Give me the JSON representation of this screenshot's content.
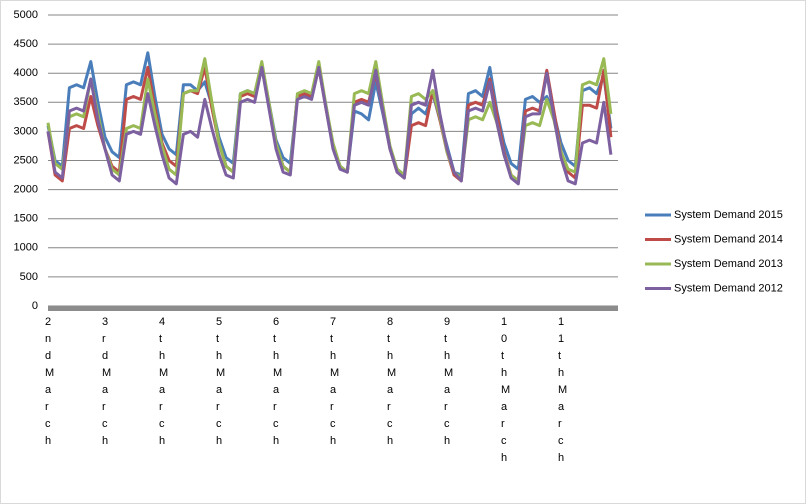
{
  "chart_data": {
    "type": "line",
    "categories": [
      "2nd March",
      null,
      null,
      null,
      null,
      null,
      null,
      null,
      "3rd March",
      null,
      null,
      null,
      null,
      null,
      null,
      null,
      "4th March",
      null,
      null,
      null,
      null,
      null,
      null,
      null,
      "5th March",
      null,
      null,
      null,
      null,
      null,
      null,
      null,
      "6th March",
      null,
      null,
      null,
      null,
      null,
      null,
      null,
      "7th March",
      null,
      null,
      null,
      null,
      null,
      null,
      null,
      "8th March",
      null,
      null,
      null,
      null,
      null,
      null,
      null,
      "9th March",
      null,
      null,
      null,
      null,
      null,
      null,
      null,
      "10th March",
      null,
      null,
      null,
      null,
      null,
      null,
      null,
      "11th March",
      null,
      null,
      null,
      null,
      null,
      null,
      null
    ],
    "series": [
      {
        "name": "System Demand 2015",
        "color": "#4a7ebb",
        "values": [
          3100,
          2500,
          2400,
          3750,
          3800,
          3750,
          4200,
          3500,
          2900,
          2650,
          2550,
          3800,
          3850,
          3800,
          4350,
          3600,
          2950,
          2700,
          2600,
          3800,
          3800,
          3700,
          3850,
          3450,
          2900,
          2550,
          2450,
          3650,
          3700,
          3650,
          4150,
          3500,
          2850,
          2550,
          2450,
          3600,
          3650,
          3600,
          4100,
          3450,
          2750,
          2400,
          2300,
          3350,
          3300,
          3200,
          3850,
          3300,
          2700,
          2350,
          2250,
          3300,
          3400,
          3300,
          3650,
          3200,
          2750,
          2300,
          2250,
          3650,
          3700,
          3600,
          4100,
          3350,
          2800,
          2450,
          2350,
          3550,
          3600,
          3500,
          3600,
          3300,
          2800,
          2500,
          2400,
          3700,
          3750,
          3650,
          3950,
          3050
        ]
      },
      {
        "name": "System Demand 2014",
        "color": "#be4b48",
        "values": [
          3000,
          2250,
          2150,
          3050,
          3100,
          3050,
          3600,
          3100,
          2700,
          2400,
          2300,
          3550,
          3600,
          3550,
          4100,
          3400,
          2800,
          2500,
          2400,
          3650,
          3700,
          3650,
          4100,
          3400,
          2800,
          2400,
          2300,
          3600,
          3650,
          3600,
          4100,
          3450,
          2800,
          2400,
          2300,
          3600,
          3650,
          3600,
          4100,
          3400,
          2750,
          2400,
          2300,
          3500,
          3550,
          3500,
          4000,
          3350,
          2700,
          2300,
          2200,
          3100,
          3150,
          3100,
          3700,
          3200,
          2650,
          2250,
          2150,
          3450,
          3500,
          3450,
          3900,
          3300,
          2650,
          2250,
          2150,
          3350,
          3400,
          3350,
          4050,
          3350,
          2650,
          2300,
          2200,
          3450,
          3450,
          3400,
          4050,
          2900
        ]
      },
      {
        "name": "System Demand 2013",
        "color": "#98b954",
        "values": [
          3150,
          2450,
          2350,
          3250,
          3300,
          3250,
          3900,
          3300,
          2700,
          2350,
          2250,
          3050,
          3100,
          3050,
          3900,
          3300,
          2750,
          2350,
          2250,
          3650,
          3700,
          3700,
          4250,
          3500,
          2800,
          2400,
          2300,
          3650,
          3700,
          3650,
          4200,
          3500,
          2800,
          2400,
          2300,
          3650,
          3700,
          3650,
          4200,
          3450,
          2800,
          2400,
          2300,
          3650,
          3700,
          3650,
          4200,
          3450,
          2750,
          2350,
          2250,
          3600,
          3650,
          3550,
          3700,
          3250,
          2650,
          2300,
          2200,
          3200,
          3250,
          3200,
          3500,
          3150,
          2600,
          2250,
          2150,
          3100,
          3150,
          3100,
          3550,
          3200,
          2650,
          2350,
          2300,
          3800,
          3850,
          3800,
          4250,
          3300
        ]
      },
      {
        "name": "System Demand 2012",
        "color": "#7d60a0",
        "values": [
          3000,
          2300,
          2200,
          3350,
          3400,
          3350,
          3900,
          3200,
          2700,
          2250,
          2150,
          2950,
          3000,
          2950,
          3650,
          3100,
          2600,
          2200,
          2100,
          2950,
          3000,
          2900,
          3550,
          3050,
          2600,
          2250,
          2200,
          3500,
          3550,
          3500,
          4100,
          3400,
          2700,
          2300,
          2250,
          3550,
          3600,
          3550,
          4100,
          3400,
          2700,
          2350,
          2300,
          3450,
          3500,
          3450,
          4050,
          3350,
          2700,
          2300,
          2200,
          3450,
          3500,
          3450,
          4050,
          3300,
          2700,
          2300,
          2150,
          3350,
          3400,
          3350,
          3850,
          3150,
          2600,
          2200,
          2100,
          3250,
          3300,
          3300,
          4000,
          3250,
          2550,
          2150,
          2100,
          2800,
          2850,
          2800,
          3500,
          2600
        ]
      }
    ],
    "ylim": [
      0,
      5000
    ],
    "yticks": [
      0,
      500,
      1000,
      1500,
      2000,
      2500,
      3000,
      3500,
      4000,
      4500,
      5000
    ],
    "grid": true,
    "legend": "right"
  }
}
